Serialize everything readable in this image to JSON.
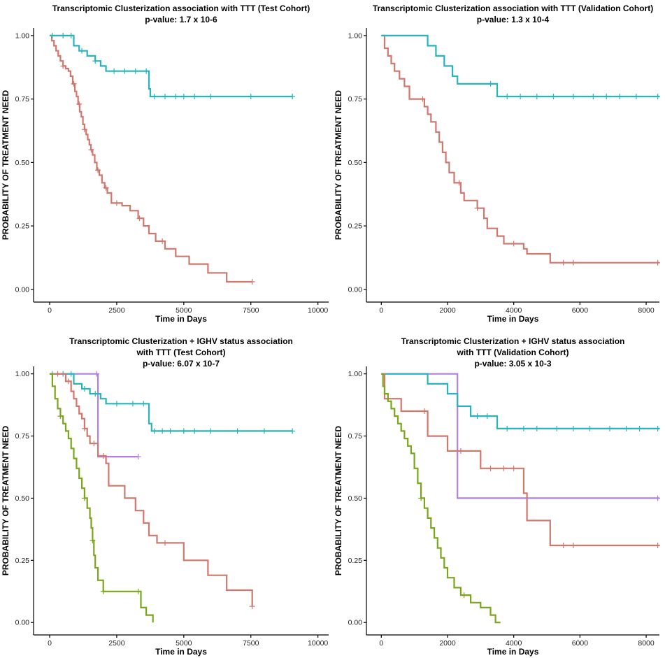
{
  "chart_data": [
    {
      "type": "line",
      "subtype": "kaplan-meier",
      "title": "Transcriptomic Clusterization association with TTT (Test Cohort)",
      "subtitle": "p-value: 1.7 x 10-6",
      "xlabel": "Time in Days",
      "ylabel": "PROBABILITY OF TREATMENT NEED",
      "xlim": [
        -600,
        10400
      ],
      "ylim": [
        -0.05,
        1.03
      ],
      "xticks": [
        0,
        2500,
        5000,
        7500,
        10000
      ],
      "xtick_labels": [
        "0",
        "2500",
        "5000",
        "7500",
        "10000"
      ],
      "yticks": [
        0,
        0.25,
        0.5,
        0.75,
        1.0
      ],
      "ytick_labels": [
        "0.00",
        "0.25",
        "0.50",
        "0.75",
        "1.00"
      ],
      "grid": false,
      "series": [
        {
          "name": "cluster-red",
          "color": "#d0776e",
          "x": [
            0,
            80,
            160,
            240,
            320,
            400,
            500,
            600,
            700,
            780,
            860,
            940,
            1000,
            1060,
            1120,
            1180,
            1240,
            1300,
            1360,
            1420,
            1480,
            1540,
            1600,
            1680,
            1760,
            1850,
            1950,
            2050,
            2150,
            2300,
            2700,
            3000,
            3300,
            3500,
            3700,
            3950,
            4300,
            4700,
            5200,
            5900,
            6600,
            7550
          ],
          "y": [
            1.0,
            0.98,
            0.96,
            0.94,
            0.92,
            0.9,
            0.88,
            0.87,
            0.86,
            0.84,
            0.81,
            0.78,
            0.76,
            0.73,
            0.7,
            0.68,
            0.65,
            0.63,
            0.61,
            0.59,
            0.57,
            0.55,
            0.53,
            0.5,
            0.47,
            0.45,
            0.42,
            0.4,
            0.38,
            0.34,
            0.33,
            0.31,
            0.28,
            0.25,
            0.22,
            0.19,
            0.16,
            0.13,
            0.1,
            0.065,
            0.03,
            0.03
          ],
          "censored": [
            500,
            900,
            1100,
            1300,
            1550,
            1800,
            2100,
            2500,
            3350,
            4200,
            7550
          ]
        },
        {
          "name": "cluster-cyan",
          "color": "#28b5b9",
          "x": [
            0,
            900,
            1100,
            1400,
            1700,
            1900,
            2100,
            3700,
            3750,
            9050
          ],
          "y": [
            1.0,
            0.96,
            0.94,
            0.92,
            0.9,
            0.88,
            0.86,
            0.79,
            0.76,
            0.76
          ],
          "censored": [
            100,
            500,
            800,
            1200,
            1700,
            2400,
            2800,
            3200,
            3600,
            3900,
            4300,
            4700,
            5000,
            5400,
            6000,
            7500,
            9050
          ]
        }
      ]
    },
    {
      "type": "line",
      "subtype": "kaplan-meier",
      "title": "Transcriptomic Clusterization association with TTT (Validation Cohort)",
      "subtitle": "p-value: 1.3 x 10-4",
      "xlabel": "Time in Days",
      "ylabel": "PROBABILITY OF TREATMENT NEED",
      "xlim": [
        -450,
        8400
      ],
      "ylim": [
        -0.05,
        1.03
      ],
      "xticks": [
        0,
        2000,
        4000,
        6000,
        8000
      ],
      "xtick_labels": [
        "0",
        "2000",
        "4000",
        "6000",
        "8000"
      ],
      "yticks": [
        0,
        0.25,
        0.5,
        0.75,
        1.0
      ],
      "ytick_labels": [
        "0.00",
        "0.25",
        "0.50",
        "0.75",
        "1.00"
      ],
      "grid": false,
      "series": [
        {
          "name": "cluster-red",
          "color": "#d0776e",
          "x": [
            0,
            100,
            200,
            300,
            400,
            550,
            700,
            850,
            1300,
            1400,
            1500,
            1650,
            1750,
            1850,
            1950,
            2050,
            2200,
            2400,
            2500,
            2900,
            3100,
            3200,
            3500,
            3700,
            4300,
            4400,
            5100,
            8400
          ],
          "y": [
            1.0,
            0.95,
            0.92,
            0.89,
            0.86,
            0.83,
            0.8,
            0.75,
            0.72,
            0.69,
            0.66,
            0.62,
            0.58,
            0.54,
            0.5,
            0.46,
            0.42,
            0.38,
            0.35,
            0.32,
            0.28,
            0.24,
            0.21,
            0.18,
            0.16,
            0.14,
            0.105,
            0.105
          ],
          "censored": [
            1250,
            2350,
            2900,
            4000,
            5500,
            5800,
            8350
          ]
        },
        {
          "name": "cluster-cyan",
          "color": "#28b5b9",
          "x": [
            0,
            1400,
            1650,
            1900,
            2150,
            2300,
            3500,
            8400
          ],
          "y": [
            1.0,
            0.96,
            0.92,
            0.88,
            0.84,
            0.81,
            0.76,
            0.76
          ],
          "censored": [
            3300,
            3800,
            4200,
            4700,
            5200,
            5800,
            6400,
            6800,
            7200,
            7700,
            8350
          ]
        }
      ]
    },
    {
      "type": "line",
      "subtype": "kaplan-meier",
      "title": "Transcriptomic Clusterization + IGHV status association",
      "title_line2": "with TTT (Test Cohort)",
      "subtitle": "p-value: 6.07 x 10-7",
      "xlabel": "Time in Days",
      "ylabel": "PROBABILITY OF TREATMENT NEED",
      "xlim": [
        -600,
        10400
      ],
      "ylim": [
        -0.05,
        1.03
      ],
      "xticks": [
        0,
        2500,
        5000,
        7500,
        10000
      ],
      "xtick_labels": [
        "0",
        "2500",
        "5000",
        "7500",
        "10000"
      ],
      "yticks": [
        0,
        0.25,
        0.5,
        0.75,
        1.0
      ],
      "ytick_labels": [
        "0.00",
        "0.25",
        "0.50",
        "0.75",
        "1.00"
      ],
      "grid": false,
      "series": [
        {
          "name": "group-purple",
          "color": "#b27ee0",
          "x": [
            0,
            1800,
            3300
          ],
          "y": [
            1.0,
            0.667,
            0.667
          ],
          "censored": [
            1750,
            3300
          ]
        },
        {
          "name": "group-cyan",
          "color": "#28b5b9",
          "x": [
            0,
            900,
            1200,
            1500,
            1900,
            2100,
            3700,
            3800,
            9050
          ],
          "y": [
            1.0,
            0.96,
            0.94,
            0.92,
            0.9,
            0.88,
            0.8,
            0.77,
            0.77
          ],
          "censored": [
            100,
            500,
            800,
            1300,
            1700,
            2500,
            3100,
            3500,
            3900,
            4200,
            4500,
            5000,
            5400,
            6000,
            7000,
            8000,
            9050
          ]
        },
        {
          "name": "group-red",
          "color": "#d0776e",
          "x": [
            0,
            600,
            800,
            900,
            1000,
            1100,
            1200,
            1300,
            1400,
            1500,
            1800,
            2100,
            2200,
            2800,
            3200,
            3500,
            3700,
            4000,
            5000,
            5900,
            6600,
            7550
          ],
          "y": [
            1.0,
            0.97,
            0.93,
            0.9,
            0.87,
            0.84,
            0.82,
            0.78,
            0.75,
            0.72,
            0.67,
            0.64,
            0.55,
            0.5,
            0.45,
            0.4,
            0.35,
            0.32,
            0.25,
            0.19,
            0.13,
            0.065
          ],
          "censored": [
            300,
            700,
            1300,
            1650,
            2000,
            4300,
            7550
          ]
        },
        {
          "name": "group-green",
          "color": "#7aa61c",
          "x": [
            0,
            100,
            200,
            300,
            400,
            500,
            600,
            700,
            800,
            900,
            1000,
            1100,
            1200,
            1300,
            1400,
            1500,
            1550,
            1600,
            1650,
            1700,
            1800,
            2000,
            3400,
            3600,
            3850
          ],
          "y": [
            1.0,
            0.95,
            0.9,
            0.86,
            0.83,
            0.8,
            0.77,
            0.74,
            0.7,
            0.66,
            0.62,
            0.58,
            0.54,
            0.5,
            0.46,
            0.42,
            0.38,
            0.33,
            0.27,
            0.22,
            0.17,
            0.125,
            0.06,
            0.03,
            0.0
          ],
          "censored": [
            400,
            1300,
            1600,
            2000,
            3300
          ]
        }
      ]
    },
    {
      "type": "line",
      "subtype": "kaplan-meier",
      "title": "Transcriptomic Clusterization + IGHV status association",
      "title_line2": "with TTT (Validation Cohort)",
      "subtitle": "p-value: 3.05 x 10-3",
      "xlabel": "Time in Days",
      "ylabel": "PROBABILITY OF TREATMENT NEED",
      "xlim": [
        -450,
        8400
      ],
      "ylim": [
        -0.05,
        1.03
      ],
      "xticks": [
        0,
        2000,
        4000,
        6000,
        8000
      ],
      "xtick_labels": [
        "0",
        "2000",
        "4000",
        "6000",
        "8000"
      ],
      "yticks": [
        0,
        0.25,
        0.5,
        0.75,
        1.0
      ],
      "ytick_labels": [
        "0.00",
        "0.25",
        "0.50",
        "0.75",
        "1.00"
      ],
      "grid": false,
      "series": [
        {
          "name": "group-purple",
          "color": "#b27ee0",
          "x": [
            0,
            2300,
            8400
          ],
          "y": [
            1.0,
            0.5,
            0.5
          ],
          "censored": [
            8350
          ]
        },
        {
          "name": "group-cyan",
          "color": "#28b5b9",
          "x": [
            0,
            1400,
            2000,
            2300,
            2700,
            3500,
            8400
          ],
          "y": [
            1.0,
            0.96,
            0.92,
            0.87,
            0.83,
            0.78,
            0.78
          ],
          "censored": [
            2900,
            3200,
            3800,
            4300,
            4700,
            5300,
            5800,
            6300,
            6900,
            7400,
            7800,
            8350
          ]
        },
        {
          "name": "group-red",
          "color": "#d0776e",
          "x": [
            0,
            100,
            600,
            1400,
            2000,
            3000,
            4300,
            4400,
            5100,
            8400
          ],
          "y": [
            1.0,
            0.9,
            0.85,
            0.75,
            0.69,
            0.62,
            0.52,
            0.41,
            0.31,
            0.31
          ],
          "censored": [
            1300,
            2400,
            3300,
            3700,
            4000,
            5500,
            5800,
            8350
          ]
        },
        {
          "name": "group-green",
          "color": "#7aa61c",
          "x": [
            0,
            50,
            100,
            200,
            300,
            400,
            500,
            600,
            700,
            800,
            900,
            1000,
            1100,
            1200,
            1300,
            1400,
            1500,
            1600,
            1700,
            1800,
            1900,
            2000,
            2200,
            2400,
            2700,
            3000,
            3300,
            3450,
            3600
          ],
          "y": [
            1.0,
            0.95,
            0.92,
            0.89,
            0.86,
            0.83,
            0.8,
            0.77,
            0.74,
            0.71,
            0.68,
            0.62,
            0.56,
            0.5,
            0.46,
            0.42,
            0.38,
            0.34,
            0.3,
            0.26,
            0.22,
            0.18,
            0.14,
            0.11,
            0.08,
            0.06,
            0.03,
            0.0,
            0.0
          ],
          "censored": [
            1200,
            2500
          ]
        }
      ]
    }
  ]
}
